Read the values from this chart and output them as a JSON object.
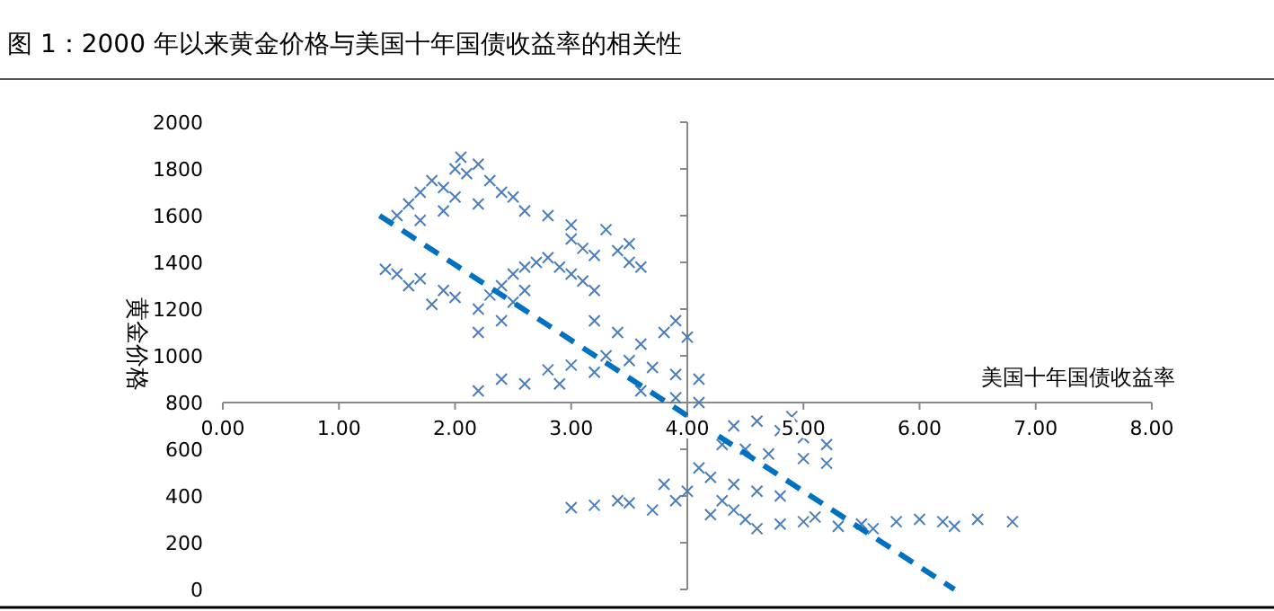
{
  "chart_data": {
    "type": "scatter",
    "title": "图 1：2000 年以来黄金价格与美国十年国债收益率的相关性",
    "xlabel": "美国十年国债收益率",
    "ylabel": "黄金价格",
    "xlim": [
      0,
      8
    ],
    "ylim": [
      0,
      2000
    ],
    "xticks": [
      {
        "value": 0,
        "label": "0.00"
      },
      {
        "value": 1,
        "label": "1.00"
      },
      {
        "value": 2,
        "label": "2.00"
      },
      {
        "value": 3,
        "label": "3.00"
      },
      {
        "value": 4,
        "label": "4.00"
      },
      {
        "value": 5,
        "label": "5.00"
      },
      {
        "value": 6,
        "label": "6.00"
      },
      {
        "value": 7,
        "label": "7.00"
      },
      {
        "value": 8,
        "label": "8.00"
      }
    ],
    "yticks": [
      0,
      200,
      400,
      600,
      800,
      1000,
      1200,
      1400,
      1600,
      1800,
      2000
    ],
    "series": [
      {
        "type": "scatter",
        "color": "#4a7ebb",
        "marker": "cross",
        "x": [
          1.6,
          1.7,
          1.8,
          1.9,
          2.0,
          2.05,
          2.1,
          2.2,
          2.3,
          2.4,
          1.9,
          2.2,
          1.5,
          1.7,
          2.5,
          2.6,
          2.8,
          3.0,
          2.0,
          1.4,
          1.5,
          1.7,
          1.9,
          2.0,
          2.2,
          2.3,
          2.4,
          2.5,
          2.6,
          2.7,
          2.8,
          2.9,
          3.0,
          3.1,
          2.6,
          2.4,
          2.2,
          2.5,
          1.6,
          1.8,
          3.2,
          3.0,
          3.1,
          3.2,
          3.4,
          3.5,
          3.6,
          3.3,
          3.5,
          3.2,
          3.4,
          3.6,
          3.8,
          4.0,
          3.9,
          3.5,
          3.7,
          3.9,
          4.1,
          2.4,
          2.6,
          2.8,
          3.0,
          2.9,
          3.2,
          2.2,
          3.6,
          3.9,
          4.1,
          3.3,
          4.4,
          4.6,
          4.8,
          5.0,
          5.2,
          4.5,
          4.7,
          5.0,
          4.9,
          5.2,
          4.3,
          3.8,
          4.0,
          4.2,
          4.4,
          4.6,
          4.8,
          4.1,
          4.3,
          3.9,
          3.5,
          3.2,
          3.0,
          3.4,
          3.7,
          4.2,
          4.5,
          4.8,
          5.0,
          5.3,
          5.5,
          5.8,
          6.0,
          6.2,
          6.5,
          6.8,
          4.6,
          5.1,
          5.6,
          6.3,
          4.4
        ],
        "values": [
          1650,
          1700,
          1750,
          1720,
          1800,
          1850,
          1780,
          1820,
          1750,
          1700,
          1620,
          1650,
          1600,
          1580,
          1680,
          1620,
          1600,
          1560,
          1680,
          1370,
          1350,
          1330,
          1280,
          1250,
          1200,
          1260,
          1300,
          1350,
          1380,
          1400,
          1420,
          1380,
          1350,
          1320,
          1280,
          1150,
          1100,
          1230,
          1300,
          1220,
          1280,
          1500,
          1460,
          1430,
          1450,
          1400,
          1380,
          1540,
          1480,
          1150,
          1100,
          1050,
          1100,
          1080,
          1150,
          980,
          950,
          920,
          900,
          900,
          880,
          940,
          960,
          880,
          930,
          850,
          850,
          820,
          800,
          1000,
          700,
          720,
          680,
          650,
          620,
          600,
          580,
          560,
          740,
          540,
          620,
          450,
          420,
          480,
          450,
          420,
          400,
          520,
          380,
          380,
          370,
          360,
          350,
          380,
          340,
          320,
          300,
          280,
          290,
          270,
          280,
          290,
          300,
          290,
          300,
          290,
          260,
          310,
          260,
          270,
          340
        ]
      },
      {
        "type": "line",
        "color": "#0070c0",
        "line_style": "dashed",
        "x": [
          1.35,
          6.3
        ],
        "values": [
          1600,
          0
        ]
      }
    ]
  }
}
